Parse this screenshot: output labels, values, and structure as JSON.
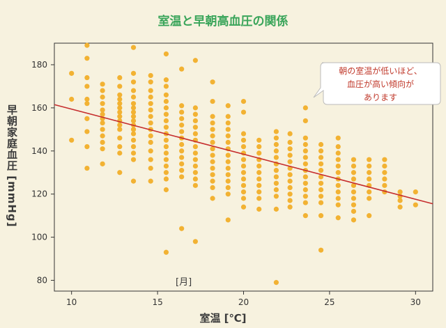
{
  "chart_data": {
    "type": "scatter",
    "title": "室温と早朝高血圧の関係",
    "xlabel": "室温 [℃]",
    "ylabel": "早朝家庭血圧 [mmHg]",
    "xlim": [
      9,
      31
    ],
    "ylim": [
      75,
      190
    ],
    "xticks": [
      10,
      15,
      20,
      25,
      30
    ],
    "yticks": [
      80,
      100,
      120,
      140,
      160,
      180
    ],
    "grid": false,
    "legend": "none",
    "annotation": {
      "text": "朝の室温が低いほど、血圧が高い傾向があります",
      "lines": [
        "朝の室温が低いほど、",
        "血圧が高い傾向が",
        "あります"
      ]
    },
    "extra_label": "[月]",
    "colors": {
      "points": "#f2b233",
      "trend": "#c62d2d",
      "axis": "#333333",
      "title": "#3aa55a"
    },
    "trend_line": {
      "x": [
        9,
        31
      ],
      "y": [
        161.5,
        115.5
      ]
    },
    "columns": [
      {
        "x": 10.0,
        "y": [
          176,
          164,
          145
        ]
      },
      {
        "x": 10.9,
        "y": [
          189,
          183,
          174,
          170,
          164,
          162,
          155,
          149,
          142,
          132
        ]
      },
      {
        "x": 11.8,
        "y": [
          171,
          168,
          165,
          162,
          159,
          157,
          155,
          153,
          150,
          147,
          144,
          141,
          134
        ]
      },
      {
        "x": 12.8,
        "y": [
          174,
          170,
          166,
          164,
          162,
          160,
          158,
          156,
          154,
          152,
          150,
          146,
          142,
          139,
          130
        ]
      },
      {
        "x": 13.6,
        "y": [
          188,
          176,
          172,
          168,
          165,
          162,
          160,
          158,
          156,
          154,
          152,
          150,
          148,
          145,
          142,
          139,
          136,
          126
        ]
      },
      {
        "x": 14.6,
        "y": [
          175,
          172,
          168,
          165,
          162,
          159,
          156,
          153,
          150,
          147,
          144,
          140,
          136,
          132,
          126
        ]
      },
      {
        "x": 15.5,
        "y": [
          185,
          173,
          170,
          166,
          163,
          160,
          157,
          154,
          151,
          148,
          145,
          142,
          139,
          136,
          133,
          130,
          127,
          122,
          93
        ]
      },
      {
        "x": 16.4,
        "y": [
          178,
          161,
          158,
          155,
          152,
          149,
          146,
          143,
          140,
          137,
          134,
          131,
          128,
          104
        ]
      },
      {
        "x": 17.2,
        "y": [
          182,
          160,
          157,
          154,
          151,
          148,
          145,
          142,
          139,
          136,
          133,
          130,
          127,
          124,
          98
        ]
      },
      {
        "x": 18.2,
        "y": [
          172,
          163,
          156,
          153,
          150,
          147,
          144,
          141,
          138,
          135,
          132,
          129,
          126,
          123,
          118
        ]
      },
      {
        "x": 19.1,
        "y": [
          161,
          156,
          153,
          150,
          147,
          144,
          141,
          138,
          135,
          132,
          129,
          126,
          123,
          120,
          108
        ]
      },
      {
        "x": 20.0,
        "y": [
          163,
          158,
          148,
          145,
          142,
          139,
          136,
          133,
          130,
          127,
          124,
          121,
          118,
          114
        ]
      },
      {
        "x": 20.9,
        "y": [
          145,
          142,
          139,
          136,
          133,
          130,
          127,
          124,
          121,
          118,
          113
        ]
      },
      {
        "x": 21.9,
        "y": [
          149,
          146,
          143,
          140,
          137,
          134,
          131,
          128,
          125,
          122,
          119,
          113,
          79
        ]
      },
      {
        "x": 22.7,
        "y": [
          148,
          144,
          141,
          138,
          135,
          132,
          129,
          126,
          123,
          120,
          117,
          114
        ]
      },
      {
        "x": 23.6,
        "y": [
          160,
          154,
          146,
          143,
          140,
          137,
          134,
          131,
          128,
          125,
          122,
          119,
          116,
          110
        ]
      },
      {
        "x": 24.5,
        "y": [
          143,
          140,
          137,
          134,
          131,
          128,
          125,
          122,
          119,
          116,
          110,
          94
        ]
      },
      {
        "x": 25.5,
        "y": [
          146,
          142,
          139,
          136,
          133,
          130,
          127,
          124,
          121,
          118,
          115,
          109
        ]
      },
      {
        "x": 26.4,
        "y": [
          136,
          133,
          130,
          127,
          124,
          121,
          118,
          115,
          112,
          108
        ]
      },
      {
        "x": 27.3,
        "y": [
          136,
          133,
          130,
          127,
          124,
          121,
          118,
          110
        ]
      },
      {
        "x": 28.2,
        "y": [
          136,
          133,
          130,
          127,
          124,
          121
        ]
      },
      {
        "x": 29.1,
        "y": [
          121,
          119,
          117,
          114
        ]
      },
      {
        "x": 30.0,
        "y": [
          121,
          115
        ]
      }
    ]
  }
}
